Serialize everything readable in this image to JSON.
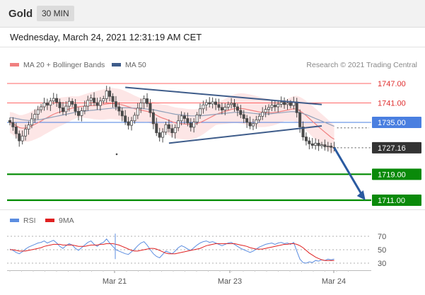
{
  "header": {
    "symbol": "Gold",
    "timeframe": "30 MIN"
  },
  "datetime": "Wednesday, March 24, 2021 12:31:19 AM CET",
  "credit": "Research © 2021 Trading Central",
  "legend": {
    "ma20_label": "MA 20 + Bollinger Bands",
    "ma50_label": "MA 50",
    "rsi_label": "RSI",
    "rsi_ma_label": "9MA"
  },
  "colors": {
    "candle": "#4a4a4a",
    "ma20": "#f08080",
    "bollinger_fill": "#fde2e2",
    "ma50": "#3e5c8a",
    "pivot_line": "#ff6666",
    "resistance_blue": "#4a7fe0",
    "support": "#008a00",
    "trendline": "#3e5c8a",
    "arrow": "#2a5aa0",
    "rsi": "#5b8de0",
    "rsi_ma": "#e02020"
  },
  "chart_data": [
    {
      "type": "candlestick",
      "title": "Gold",
      "timeframe": "30 MIN",
      "x_ticks": [
        "Mar 21",
        "Mar 23",
        "Mar 24"
      ],
      "ylim": [
        1708,
        1752
      ],
      "levels": [
        {
          "value": 1747.0,
          "label": "1747.00",
          "style": "pivot"
        },
        {
          "value": 1741.0,
          "label": "1741.00",
          "style": "pivot"
        },
        {
          "value": 1735.0,
          "label": "1735.00",
          "style": "resistance"
        },
        {
          "value": 1727.16,
          "label": "1727.16",
          "style": "last_price"
        },
        {
          "value": 1719.0,
          "label": "1719.00",
          "style": "support"
        },
        {
          "value": 1711.0,
          "label": "1711.00",
          "style": "support"
        }
      ],
      "last_price": 1727.16,
      "close": [
        1735.0,
        1733.6,
        1731.5,
        1729.3,
        1730.8,
        1732.9,
        1734.2,
        1736.1,
        1737.5,
        1738.9,
        1739.8,
        1741.0,
        1740.3,
        1741.6,
        1742.4,
        1741.2,
        1739.5,
        1738.3,
        1740.0,
        1741.5,
        1740.6,
        1738.4,
        1737.1,
        1738.6,
        1740.0,
        1741.8,
        1742.5,
        1741.1,
        1740.2,
        1741.6,
        1742.3,
        1744.7,
        1743.0,
        1741.4,
        1739.8,
        1738.5,
        1737.0,
        1735.2,
        1734.1,
        1735.5,
        1737.2,
        1739.4,
        1741.0,
        1742.3,
        1740.8,
        1738.0,
        1734.6,
        1731.8,
        1730.4,
        1732.0,
        1734.3,
        1733.1,
        1731.8,
        1733.4,
        1735.5,
        1737.0,
        1736.2,
        1734.8,
        1733.5,
        1735.1,
        1737.3,
        1739.2,
        1740.4,
        1741.1,
        1740.7,
        1741.3,
        1740.5,
        1739.6,
        1738.8,
        1739.7,
        1740.5,
        1740.9,
        1739.8,
        1738.7,
        1737.4,
        1736.2,
        1735.0,
        1733.9,
        1734.6,
        1735.8,
        1736.9,
        1738.1,
        1739.0,
        1739.6,
        1740.3,
        1739.8,
        1740.6,
        1741.2,
        1740.5,
        1741.0,
        1740.2,
        1741.3,
        1738.0,
        1733.6,
        1730.5,
        1729.3,
        1728.4,
        1727.9,
        1728.6,
        1727.8,
        1728.1,
        1727.5,
        1727.7,
        1727.3,
        1727.16
      ],
      "ma20": [
        1735.0,
        1734.6,
        1734.0,
        1733.4,
        1733.2,
        1733.3,
        1733.5,
        1733.9,
        1734.4,
        1734.9,
        1735.4,
        1736.0,
        1736.5,
        1737.0,
        1737.5,
        1737.9,
        1738.2,
        1738.5,
        1738.8,
        1739.1,
        1739.4,
        1739.6,
        1739.8,
        1739.9,
        1740.0,
        1740.1,
        1740.2,
        1740.2,
        1740.3,
        1740.4,
        1740.5,
        1740.7,
        1740.8,
        1740.8,
        1740.7,
        1740.6,
        1740.4,
        1740.1,
        1739.8,
        1739.5,
        1739.2,
        1739.0,
        1738.8,
        1738.6,
        1738.4,
        1738.1,
        1737.7,
        1737.2,
        1736.7,
        1736.3,
        1736.0,
        1735.6,
        1735.2,
        1734.9,
        1734.7,
        1734.6,
        1734.5,
        1734.4,
        1734.4,
        1734.5,
        1734.7,
        1735.0,
        1735.4,
        1735.9,
        1736.4,
        1736.9,
        1737.4,
        1737.8,
        1738.1,
        1738.4,
        1738.7,
        1739.0,
        1739.2,
        1739.3,
        1739.3,
        1739.2,
        1739.0,
        1738.8,
        1738.6,
        1738.4,
        1738.2,
        1738.1,
        1738.0,
        1738.0,
        1738.0,
        1738.1,
        1738.2,
        1738.4,
        1738.6,
        1738.8,
        1739.0,
        1739.2,
        1739.1,
        1738.6,
        1737.9,
        1737.1,
        1736.2,
        1735.3,
        1734.5,
        1733.6,
        1732.8,
        1732.0,
        1731.2,
        1730.4,
        1729.8
      ],
      "ma50": [
        1736.5,
        1736.4,
        1736.2,
        1736.0,
        1735.8,
        1735.7,
        1735.6,
        1735.6,
        1735.7,
        1735.8,
        1735.9,
        1736.1,
        1736.3,
        1736.5,
        1736.7,
        1736.9,
        1737.1,
        1737.3,
        1737.5,
        1737.7,
        1737.9,
        1738.1,
        1738.3,
        1738.4,
        1738.5,
        1738.6,
        1738.7,
        1738.8,
        1738.9,
        1739.0,
        1739.1,
        1739.2,
        1739.3,
        1739.4,
        1739.4,
        1739.5,
        1739.5,
        1739.5,
        1739.5,
        1739.4,
        1739.4,
        1739.3,
        1739.3,
        1739.2,
        1739.1,
        1739.0,
        1738.9,
        1738.7,
        1738.5,
        1738.3,
        1738.1,
        1737.9,
        1737.7,
        1737.5,
        1737.4,
        1737.3,
        1737.2,
        1737.1,
        1737.0,
        1737.0,
        1737.0,
        1737.0,
        1737.1,
        1737.2,
        1737.3,
        1737.4,
        1737.5,
        1737.6,
        1737.7,
        1737.8,
        1737.9,
        1738.0,
        1738.1,
        1738.1,
        1738.1,
        1738.1,
        1738.0,
        1737.9,
        1737.8,
        1737.7,
        1737.6,
        1737.6,
        1737.6,
        1737.6,
        1737.7,
        1737.8,
        1737.9,
        1738.0,
        1738.1,
        1738.2,
        1738.3,
        1738.3,
        1738.2,
        1738.0,
        1737.7,
        1737.4,
        1737.0,
        1736.6,
        1736.2,
        1735.8,
        1735.4,
        1735.0,
        1734.6,
        1734.2,
        1733.8
      ],
      "trendlines": [
        {
          "name": "upper",
          "from": {
            "i": 37,
            "y": 1745.8
          },
          "to": {
            "i": 100,
            "y": 1740.5
          }
        },
        {
          "name": "lower",
          "from": {
            "i": 51,
            "y": 1728.6
          },
          "to": {
            "i": 100,
            "y": 1733.9
          }
        }
      ],
      "projection_arrow": {
        "from": {
          "i": 104,
          "y": 1727.2
        },
        "to": {
          "i": 114,
          "y": 1711.0
        }
      }
    },
    {
      "type": "line",
      "title": "RSI",
      "y_ticks": [
        70,
        50,
        30
      ],
      "ylim": [
        20,
        80
      ],
      "series": [
        {
          "name": "RSI",
          "values": [
            51,
            49,
            46,
            44,
            47,
            51,
            54,
            56,
            58,
            60,
            61,
            63,
            60,
            62,
            64,
            60,
            55,
            52,
            56,
            59,
            57,
            52,
            49,
            53,
            57,
            61,
            63,
            58,
            55,
            59,
            61,
            66,
            60,
            55,
            50,
            48,
            46,
            44,
            43,
            47,
            51,
            56,
            60,
            62,
            57,
            50,
            44,
            40,
            38,
            43,
            48,
            46,
            44,
            48,
            53,
            56,
            54,
            51,
            49,
            53,
            57,
            60,
            62,
            63,
            61,
            62,
            60,
            58,
            56,
            58,
            60,
            61,
            58,
            55,
            52,
            50,
            48,
            46,
            48,
            51,
            54,
            56,
            58,
            59,
            60,
            58,
            60,
            61,
            59,
            60,
            58,
            61,
            48,
            36,
            31,
            30,
            32,
            31,
            34,
            33,
            35,
            34,
            36,
            35,
            36
          ]
        },
        {
          "name": "9MA",
          "values": [
            50,
            50,
            49,
            48,
            48,
            48,
            49,
            50,
            51,
            52,
            53,
            55,
            56,
            57,
            58,
            58,
            58,
            57,
            57,
            57,
            57,
            56,
            55,
            55,
            55,
            56,
            57,
            57,
            57,
            58,
            58,
            59,
            59,
            59,
            58,
            57,
            55,
            53,
            51,
            49,
            48,
            48,
            49,
            50,
            51,
            52,
            52,
            51,
            49,
            47,
            45,
            44,
            44,
            44,
            45,
            46,
            47,
            48,
            49,
            50,
            51,
            52,
            54,
            56,
            57,
            58,
            59,
            59,
            59,
            59,
            59,
            59,
            59,
            58,
            57,
            56,
            55,
            53,
            52,
            51,
            51,
            51,
            52,
            53,
            54,
            55,
            56,
            57,
            58,
            58,
            59,
            59,
            58,
            56,
            53,
            49,
            45,
            42,
            39,
            37,
            35,
            34,
            34,
            34,
            34
          ]
        }
      ]
    }
  ]
}
